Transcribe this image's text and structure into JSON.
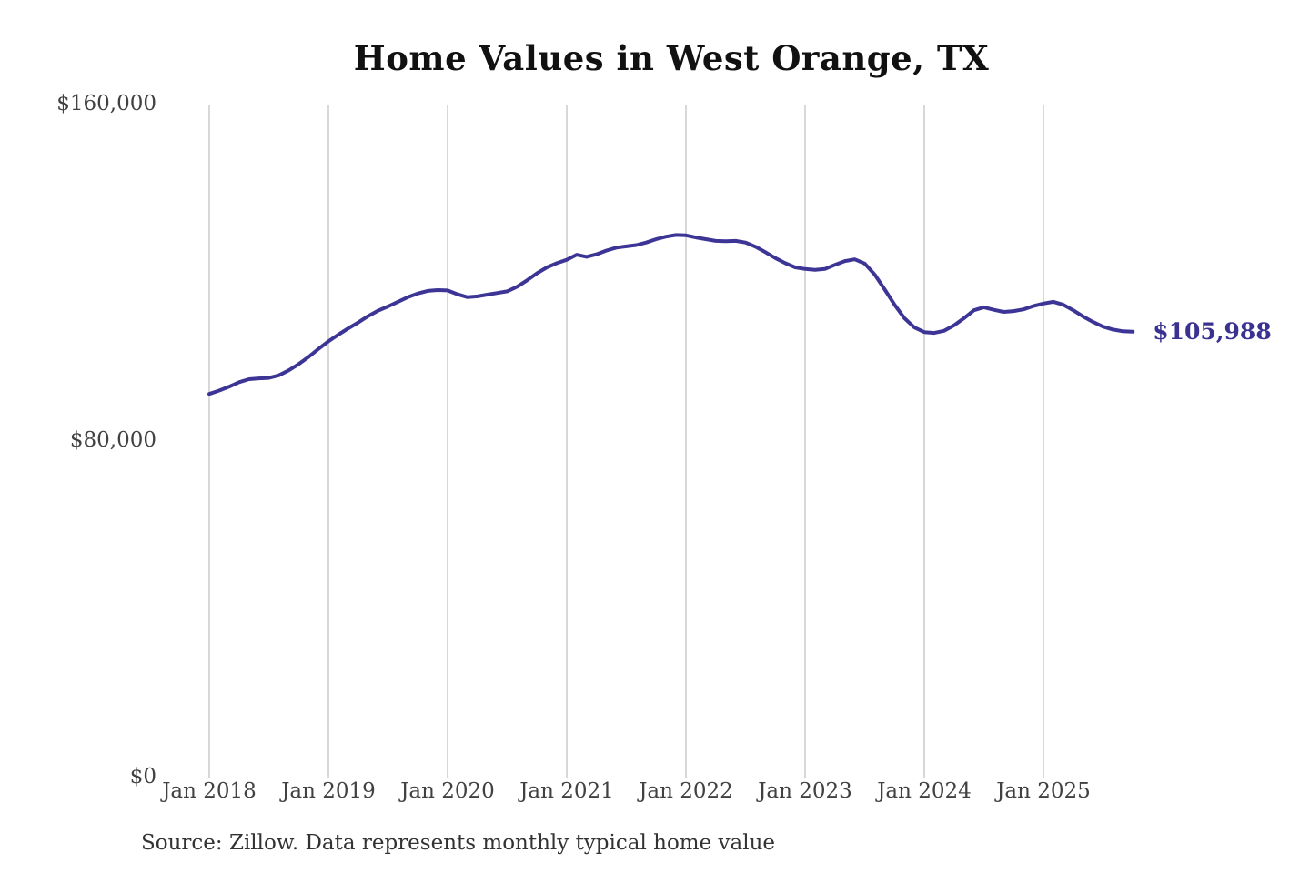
{
  "title": "Home Values in West Orange, TX",
  "source_note": "Source: Zillow. Data represents monthly typical home value",
  "end_label": "$105,988",
  "colors": {
    "line": "#3d3596",
    "grid": "#cccccc",
    "axis_text": "#414141",
    "title_text": "#111111",
    "end_label_text": "#3a3191",
    "background": "#ffffff"
  },
  "chart_data": {
    "type": "line",
    "title": "Home Values in West Orange, TX",
    "xlabel": "",
    "ylabel": "",
    "ylim": [
      0,
      160000
    ],
    "grid": "vertical-only",
    "x_ticks": [
      "Jan 2018",
      "Jan 2019",
      "Jan 2020",
      "Jan 2021",
      "Jan 2022",
      "Jan 2023",
      "Jan 2024",
      "Jan 2025"
    ],
    "y_ticks": [
      {
        "label": "$0",
        "value": 0
      },
      {
        "label": "$80,000",
        "value": 80000
      },
      {
        "label": "$160,000",
        "value": 160000
      }
    ],
    "x_start_month": "Jan 2018",
    "x_end_month": "Oct 2025",
    "months_per_tick": 12,
    "end_value": 105988,
    "series": [
      {
        "name": "Monthly typical home value (USD)",
        "values": [
          91200,
          92000,
          92900,
          94000,
          94700,
          94900,
          95000,
          95600,
          96800,
          98300,
          100000,
          101900,
          103700,
          105300,
          106800,
          108200,
          109700,
          111000,
          112000,
          113100,
          114200,
          115100,
          115700,
          115900,
          115800,
          114900,
          114200,
          114400,
          114800,
          115200,
          115600,
          116700,
          118200,
          119900,
          121300,
          122300,
          123100,
          124300,
          123800,
          124400,
          125300,
          126000,
          126300,
          126600,
          127200,
          128000,
          128600,
          129000,
          128900,
          128400,
          128000,
          127600,
          127500,
          127600,
          127200,
          126200,
          124900,
          123500,
          122300,
          121300,
          120900,
          120700,
          120900,
          121900,
          122800,
          123200,
          122200,
          119600,
          116100,
          112400,
          109200,
          107000,
          105900,
          105700,
          106200,
          107500,
          109200,
          111100,
          111800,
          111200,
          110700,
          110900,
          111300,
          112100,
          112700,
          113100,
          112400,
          111100,
          109600,
          108300,
          107200,
          106500,
          106100,
          105988
        ]
      }
    ]
  }
}
